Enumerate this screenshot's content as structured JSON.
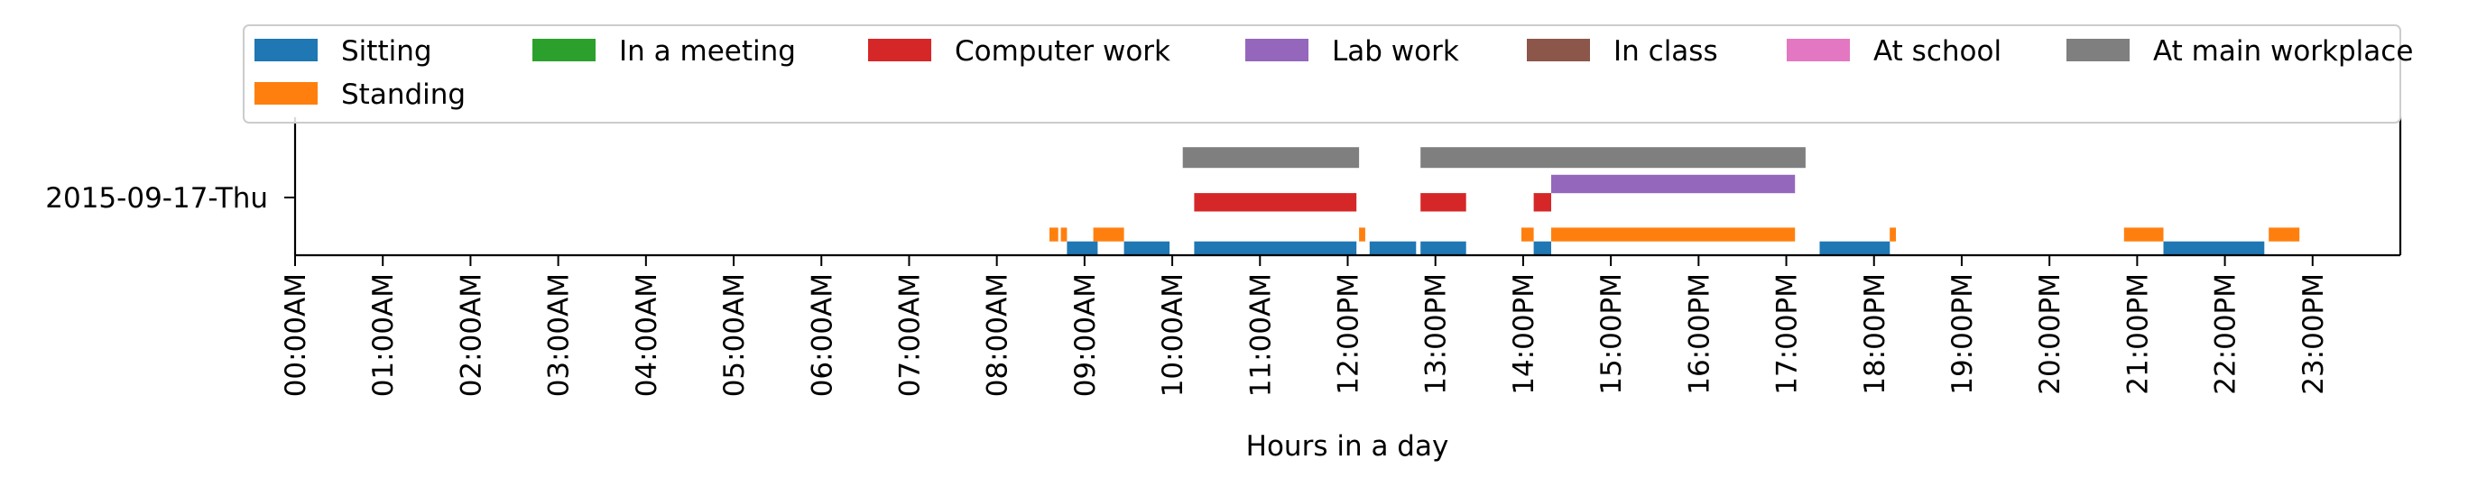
{
  "chart_data": {
    "type": "timeline",
    "title": "",
    "xlabel": "Hours in a day",
    "ylabel": "",
    "xlim": [
      0,
      24
    ],
    "ylim": [
      0,
      3
    ],
    "y_tick": {
      "label": "2015-09-17-Thu",
      "value": 1
    },
    "x_ticks": [
      "00:00AM",
      "01:00AM",
      "02:00AM",
      "03:00AM",
      "04:00AM",
      "05:00AM",
      "06:00AM",
      "07:00AM",
      "08:00AM",
      "09:00AM",
      "10:00AM",
      "11:00AM",
      "12:00PM",
      "13:00PM",
      "14:00PM",
      "15:00PM",
      "16:00PM",
      "17:00PM",
      "18:00PM",
      "19:00PM",
      "20:00PM",
      "21:00PM",
      "22:00PM",
      "23:00PM"
    ],
    "legend": {
      "placement": "top",
      "entries": [
        {
          "name": "Sitting",
          "color": "#1f77b4"
        },
        {
          "name": "In a meeting",
          "color": "#2ca02c"
        },
        {
          "name": "Computer work",
          "color": "#d62728"
        },
        {
          "name": "Lab work",
          "color": "#9467bd"
        },
        {
          "name": "In class",
          "color": "#8c564b"
        },
        {
          "name": "At school",
          "color": "#e377c2"
        },
        {
          "name": "At main workplace",
          "color": "#7f7f7f"
        },
        {
          "name": "Standing",
          "color": "#ff7f0e"
        }
      ]
    },
    "series": [
      {
        "name": "Sitting",
        "color": "#1f77b4",
        "y_range": [
          0,
          0.3
        ],
        "intervals": [
          [
            8.8,
            9.15
          ],
          [
            9.45,
            9.97
          ],
          [
            10.25,
            12.1
          ],
          [
            12.25,
            12.78
          ],
          [
            12.83,
            13.35
          ],
          [
            14.12,
            14.32
          ],
          [
            17.38,
            18.18
          ],
          [
            21.3,
            22.45
          ]
        ]
      },
      {
        "name": "Standing",
        "color": "#ff7f0e",
        "y_range": [
          0.3,
          0.6
        ],
        "intervals": [
          [
            8.6,
            8.7
          ],
          [
            8.73,
            8.8
          ],
          [
            9.1,
            9.45
          ],
          [
            12.13,
            12.2
          ],
          [
            13.98,
            14.12
          ],
          [
            14.32,
            17.1
          ],
          [
            18.18,
            18.25
          ],
          [
            20.85,
            21.3
          ],
          [
            22.5,
            22.85
          ]
        ]
      },
      {
        "name": "Computer work",
        "color": "#d62728",
        "y_range": [
          0.95,
          1.35
        ],
        "intervals": [
          [
            10.25,
            12.1
          ],
          [
            12.83,
            13.35
          ],
          [
            14.12,
            14.32
          ]
        ]
      },
      {
        "name": "Lab work",
        "color": "#9467bd",
        "y_range": [
          1.35,
          1.75
        ],
        "intervals": [
          [
            14.32,
            17.1
          ]
        ]
      },
      {
        "name": "At main workplace",
        "color": "#7f7f7f",
        "y_range": [
          1.9,
          2.35
        ],
        "intervals": [
          [
            10.12,
            12.13
          ],
          [
            12.83,
            17.22
          ]
        ]
      },
      {
        "name": "In a meeting",
        "color": "#2ca02c",
        "intervals": []
      },
      {
        "name": "In class",
        "color": "#8c564b",
        "intervals": []
      },
      {
        "name": "At school",
        "color": "#e377c2",
        "intervals": []
      }
    ]
  }
}
